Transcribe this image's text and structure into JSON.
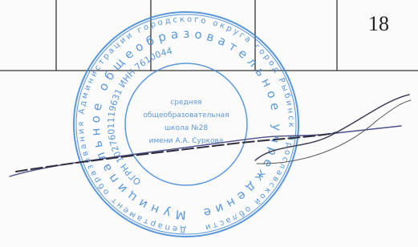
{
  "page_number": "18",
  "stamp": {
    "outer_ring": "Департамент образования Администрации городского округа город Рыбинск Ярославской области",
    "middle_ring": "Муниципальное общеобразовательное учреждение",
    "inner_ring": "ОГРН 1027601119631 ИНН 7610044",
    "center": [
      "средняя",
      "общеобразовательная",
      "школа №28",
      "имени А.А. Суркова"
    ]
  }
}
